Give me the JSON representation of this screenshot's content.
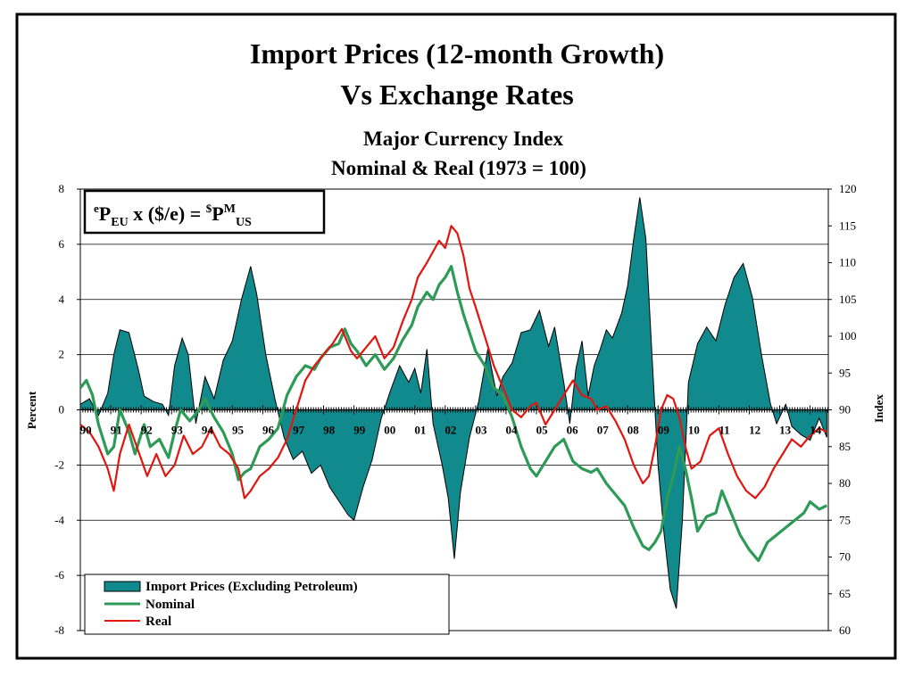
{
  "colors": {
    "import": "#118a8d",
    "nominal": "#2e9a57",
    "real": "#e0160f",
    "frame": "#000000"
  },
  "chart_data": {
    "type": "area+line",
    "title": "Import Prices (12-month Growth)",
    "title2": "Vs Exchange Rates",
    "subtitle": "Major Currency Index",
    "subtitle2": "Nominal & Real (1973 = 100)",
    "annotation": {
      "base": "P",
      "sup1": "e",
      "sub1": "EU",
      "mid": " x ($/e) = ",
      "sup2": "$",
      "base2": "P",
      "sup3": "M",
      "sub2": "US"
    },
    "ylabel_left": "Percent",
    "ylabel_right": "Index",
    "ylim_left": [
      -8,
      8
    ],
    "ylim_right": [
      60,
      120
    ],
    "x_range": [
      1990,
      2014.6
    ],
    "grid": true,
    "legend_position": "bottom-left",
    "left_ticks": [
      "8",
      "6",
      "4",
      "2",
      "0",
      "-2",
      "-4",
      "-6",
      "-8"
    ],
    "right_ticks": [
      "120",
      "115",
      "110",
      "105",
      "100",
      "95",
      "90",
      "85",
      "80",
      "75",
      "70",
      "65",
      "60"
    ],
    "x_tick_labels": [
      "90",
      "91",
      "92",
      "93",
      "94",
      "95",
      "96",
      "97",
      "98",
      "99",
      "00",
      "01",
      "02",
      "03",
      "04",
      "05",
      "06",
      "07",
      "08",
      "09",
      "10",
      "11",
      "12",
      "13",
      "14"
    ],
    "series": [
      {
        "name": "Import Prices (Excluding Petroleum)",
        "axis": "left",
        "kind": "area",
        "x": [
          1990,
          1990.3,
          1990.6,
          1990.9,
          1991.1,
          1991.3,
          1991.6,
          1991.9,
          1992.1,
          1992.4,
          1992.7,
          1992.9,
          1993.1,
          1993.35,
          1993.55,
          1993.8,
          1994.1,
          1994.4,
          1994.7,
          1995.0,
          1995.3,
          1995.6,
          1995.8,
          1996.1,
          1996.4,
          1996.7,
          1997.0,
          1997.3,
          1997.6,
          1997.9,
          1998.2,
          1998.5,
          1998.8,
          1999.0,
          1999.3,
          1999.6,
          1999.9,
          2000.2,
          2000.5,
          2000.8,
          2001.0,
          2001.2,
          2001.4,
          2001.6,
          2001.9,
          2002.1,
          2002.3,
          2002.5,
          2002.8,
          2003.1,
          2003.4,
          2003.7,
          2003.9,
          2004.2,
          2004.5,
          2004.8,
          2005.1,
          2005.4,
          2005.6,
          2005.9,
          2006.1,
          2006.3,
          2006.5,
          2006.7,
          2006.9,
          2007.1,
          2007.3,
          2007.5,
          2007.8,
          2008.0,
          2008.2,
          2008.4,
          2008.6,
          2008.8,
          2009.0,
          2009.2,
          2009.4,
          2009.6,
          2009.8,
          2010.0,
          2010.3,
          2010.6,
          2010.9,
          2011.2,
          2011.5,
          2011.8,
          2012.1,
          2012.4,
          2012.7,
          2012.9,
          2013.2,
          2013.4,
          2013.7,
          2014.0,
          2014.3,
          2014.55
        ],
        "values": [
          0.2,
          0.4,
          -0.2,
          0.6,
          2.0,
          2.9,
          2.8,
          1.5,
          0.5,
          0.3,
          0.2,
          -0.2,
          1.6,
          2.6,
          2.0,
          -0.5,
          1.2,
          0.4,
          1.8,
          2.5,
          4.0,
          5.2,
          4.2,
          2.0,
          0.4,
          -1.0,
          -1.8,
          -1.5,
          -2.3,
          -2.0,
          -2.8,
          -3.3,
          -3.8,
          -4.0,
          -2.8,
          -1.8,
          -0.3,
          0.7,
          1.6,
          1.0,
          1.5,
          0.6,
          2.2,
          -0.5,
          -2.0,
          -3.2,
          -5.4,
          -3.0,
          -1.0,
          0.3,
          2.2,
          0.5,
          1.2,
          1.7,
          2.8,
          2.9,
          3.6,
          2.3,
          3.0,
          1.0,
          -0.5,
          1.5,
          2.5,
          0.5,
          1.6,
          2.2,
          2.9,
          2.6,
          3.5,
          4.5,
          6.2,
          7.7,
          6.2,
          2.0,
          -2.0,
          -4.5,
          -6.5,
          -7.2,
          -4.0,
          1.0,
          2.4,
          3.0,
          2.5,
          3.8,
          4.8,
          5.3,
          4.1,
          2.0,
          0.2,
          -0.5,
          0.2,
          -0.6,
          -0.9,
          -1.1,
          -0.3,
          -1.0
        ]
      },
      {
        "name": "Nominal",
        "axis": "right",
        "kind": "line",
        "x": [
          1990,
          1990.2,
          1990.4,
          1990.6,
          1990.9,
          1991.1,
          1991.3,
          1991.6,
          1991.8,
          1992.1,
          1992.3,
          1992.6,
          1992.9,
          1993.1,
          1993.3,
          1993.6,
          1993.9,
          1994.1,
          1994.4,
          1994.7,
          1995.0,
          1995.2,
          1995.4,
          1995.6,
          1995.9,
          1996.2,
          1996.5,
          1996.8,
          1997.1,
          1997.4,
          1997.7,
          1997.9,
          1998.2,
          1998.5,
          1998.7,
          1998.9,
          1999.1,
          1999.4,
          1999.7,
          2000.0,
          2000.3,
          2000.6,
          2000.9,
          2001.1,
          2001.4,
          2001.6,
          2001.8,
          2002.0,
          2002.2,
          2002.4,
          2002.6,
          2002.8,
          2003.0,
          2003.3,
          2003.6,
          2003.9,
          2004.2,
          2004.5,
          2004.8,
          2005.0,
          2005.3,
          2005.6,
          2005.9,
          2006.2,
          2006.5,
          2006.8,
          2007.0,
          2007.3,
          2007.6,
          2007.9,
          2008.2,
          2008.5,
          2008.7,
          2008.9,
          2009.1,
          2009.3,
          2009.5,
          2009.7,
          2009.9,
          2010.1,
          2010.3,
          2010.6,
          2010.9,
          2011.1,
          2011.4,
          2011.7,
          2012.0,
          2012.3,
          2012.6,
          2012.9,
          2013.2,
          2013.5,
          2013.8,
          2014.0,
          2014.3,
          2014.55
        ],
        "values": [
          93.0,
          94.0,
          92.0,
          88.0,
          84.0,
          85.0,
          90.0,
          87.0,
          84.0,
          88.0,
          85.0,
          86.0,
          83.5,
          87.0,
          90.0,
          88.5,
          90.0,
          91.5,
          89.0,
          87.0,
          84.0,
          80.5,
          81.5,
          82.0,
          85.0,
          86.0,
          87.5,
          92.0,
          94.5,
          96.0,
          95.5,
          97.0,
          98.5,
          99.0,
          101.0,
          99.0,
          98.0,
          96.0,
          97.5,
          95.5,
          97.0,
          99.5,
          101.5,
          104.0,
          106.0,
          105.0,
          107.0,
          108.0,
          109.5,
          106.0,
          103.0,
          100.5,
          98.0,
          96.0,
          93.0,
          92.0,
          89.0,
          85.0,
          82.0,
          81.0,
          83.0,
          85.0,
          86.0,
          83.0,
          82.0,
          81.5,
          82.0,
          80.0,
          78.5,
          77.0,
          74.0,
          71.5,
          71.0,
          72.0,
          73.5,
          78.0,
          81.0,
          85.0,
          82.0,
          78.0,
          73.5,
          75.5,
          76.0,
          79.0,
          76.0,
          73.0,
          71.0,
          69.5,
          72.0,
          73.0,
          74.0,
          75.0,
          76.0,
          77.5,
          76.5,
          77.0
        ]
      },
      {
        "name": "Real",
        "axis": "right",
        "kind": "line",
        "x": [
          1990,
          1990.3,
          1990.6,
          1990.9,
          1991.1,
          1991.3,
          1991.6,
          1991.9,
          1992.2,
          1992.5,
          1992.8,
          1993.1,
          1993.4,
          1993.7,
          1994.0,
          1994.3,
          1994.6,
          1994.9,
          1995.2,
          1995.4,
          1995.6,
          1995.9,
          1996.2,
          1996.5,
          1996.8,
          1997.1,
          1997.4,
          1997.7,
          1998.0,
          1998.3,
          1998.6,
          1998.9,
          1999.1,
          1999.4,
          1999.7,
          2000.0,
          2000.3,
          2000.6,
          2000.9,
          2001.1,
          2001.4,
          2001.6,
          2001.8,
          2002.0,
          2002.2,
          2002.4,
          2002.6,
          2002.8,
          2003.0,
          2003.3,
          2003.6,
          2003.9,
          2004.2,
          2004.5,
          2004.8,
          2005.0,
          2005.3,
          2005.6,
          2005.9,
          2006.2,
          2006.5,
          2006.8,
          2007.0,
          2007.3,
          2007.6,
          2007.9,
          2008.2,
          2008.5,
          2008.7,
          2008.9,
          2009.1,
          2009.3,
          2009.5,
          2009.7,
          2009.9,
          2010.1,
          2010.4,
          2010.7,
          2011.0,
          2011.3,
          2011.6,
          2011.9,
          2012.2,
          2012.5,
          2012.8,
          2013.1,
          2013.4,
          2013.7,
          2014.0,
          2014.3,
          2014.55
        ],
        "values": [
          88.0,
          87.0,
          85.0,
          82.0,
          79.0,
          84.0,
          88.0,
          84.5,
          81.0,
          84.0,
          81.0,
          82.5,
          86.5,
          84.0,
          85.0,
          87.5,
          85.0,
          84.0,
          82.0,
          78.0,
          79.0,
          81.0,
          82.0,
          83.5,
          86.0,
          90.0,
          94.0,
          96.0,
          97.5,
          99.0,
          101.0,
          98.0,
          97.0,
          98.5,
          100.0,
          97.0,
          98.5,
          102.0,
          105.0,
          108.0,
          110.0,
          111.5,
          113.0,
          112.0,
          115.0,
          114.0,
          111.0,
          106.5,
          104.0,
          100.0,
          96.0,
          93.0,
          90.0,
          89.0,
          90.5,
          91.0,
          88.0,
          90.0,
          92.0,
          94.0,
          92.0,
          91.5,
          90.0,
          90.5,
          88.5,
          86.0,
          82.5,
          80.0,
          81.0,
          85.0,
          90.0,
          92.0,
          91.5,
          89.0,
          85.0,
          82.0,
          83.0,
          86.5,
          87.5,
          84.0,
          81.0,
          79.0,
          78.0,
          79.5,
          82.0,
          84.0,
          86.0,
          85.0,
          86.5,
          87.5,
          87.0
        ]
      }
    ]
  }
}
